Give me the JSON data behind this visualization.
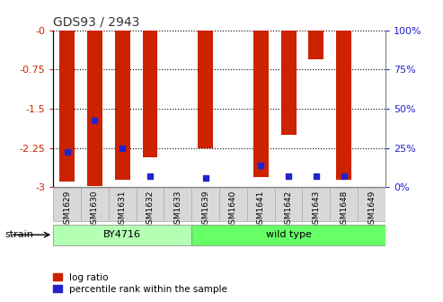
{
  "title": "GDS93 / 2943",
  "samples": [
    "GSM1629",
    "GSM1630",
    "GSM1631",
    "GSM1632",
    "GSM1633",
    "GSM1639",
    "GSM1640",
    "GSM1641",
    "GSM1642",
    "GSM1643",
    "GSM1648",
    "GSM1649"
  ],
  "log_ratio": [
    -2.9,
    -2.98,
    -2.86,
    -2.42,
    0.0,
    -2.25,
    0.0,
    -2.8,
    -2.0,
    -0.55,
    -2.85,
    0.0
  ],
  "percentile_rank_positions": [
    -2.32,
    -1.73,
    -2.26,
    -2.79,
    null,
    -2.82,
    null,
    -2.59,
    -2.79,
    -2.79,
    -2.79,
    null
  ],
  "strain_groups": [
    {
      "label": "BY4716",
      "start": 0,
      "end": 4,
      "color": "#b3ffb3"
    },
    {
      "label": "wild type",
      "start": 5,
      "end": 11,
      "color": "#66ff66"
    }
  ],
  "ylim_min": -3.0,
  "ylim_max": 0.0,
  "yticks": [
    0,
    -0.75,
    -1.5,
    -2.25,
    -3.0
  ],
  "ytick_labels_left": [
    "-0",
    "-0.75",
    "-1.5",
    "-2.25",
    "-3"
  ],
  "right_yticks_pct": [
    100,
    75,
    50,
    25,
    0
  ],
  "bar_color": "#cc2200",
  "percentile_color": "#2222cc",
  "bar_width": 0.55,
  "background_color": "#ffffff",
  "tick_label_color_left": "#cc2200",
  "tick_label_color_right": "#2222cc",
  "legend_log_ratio_label": "log ratio",
  "legend_percentile_label": "percentile rank within the sample",
  "strain_label": "strain",
  "grid_linestyle": "dotted",
  "grid_color": "#000000",
  "xticklabel_bg_color": "#d8d8d8"
}
